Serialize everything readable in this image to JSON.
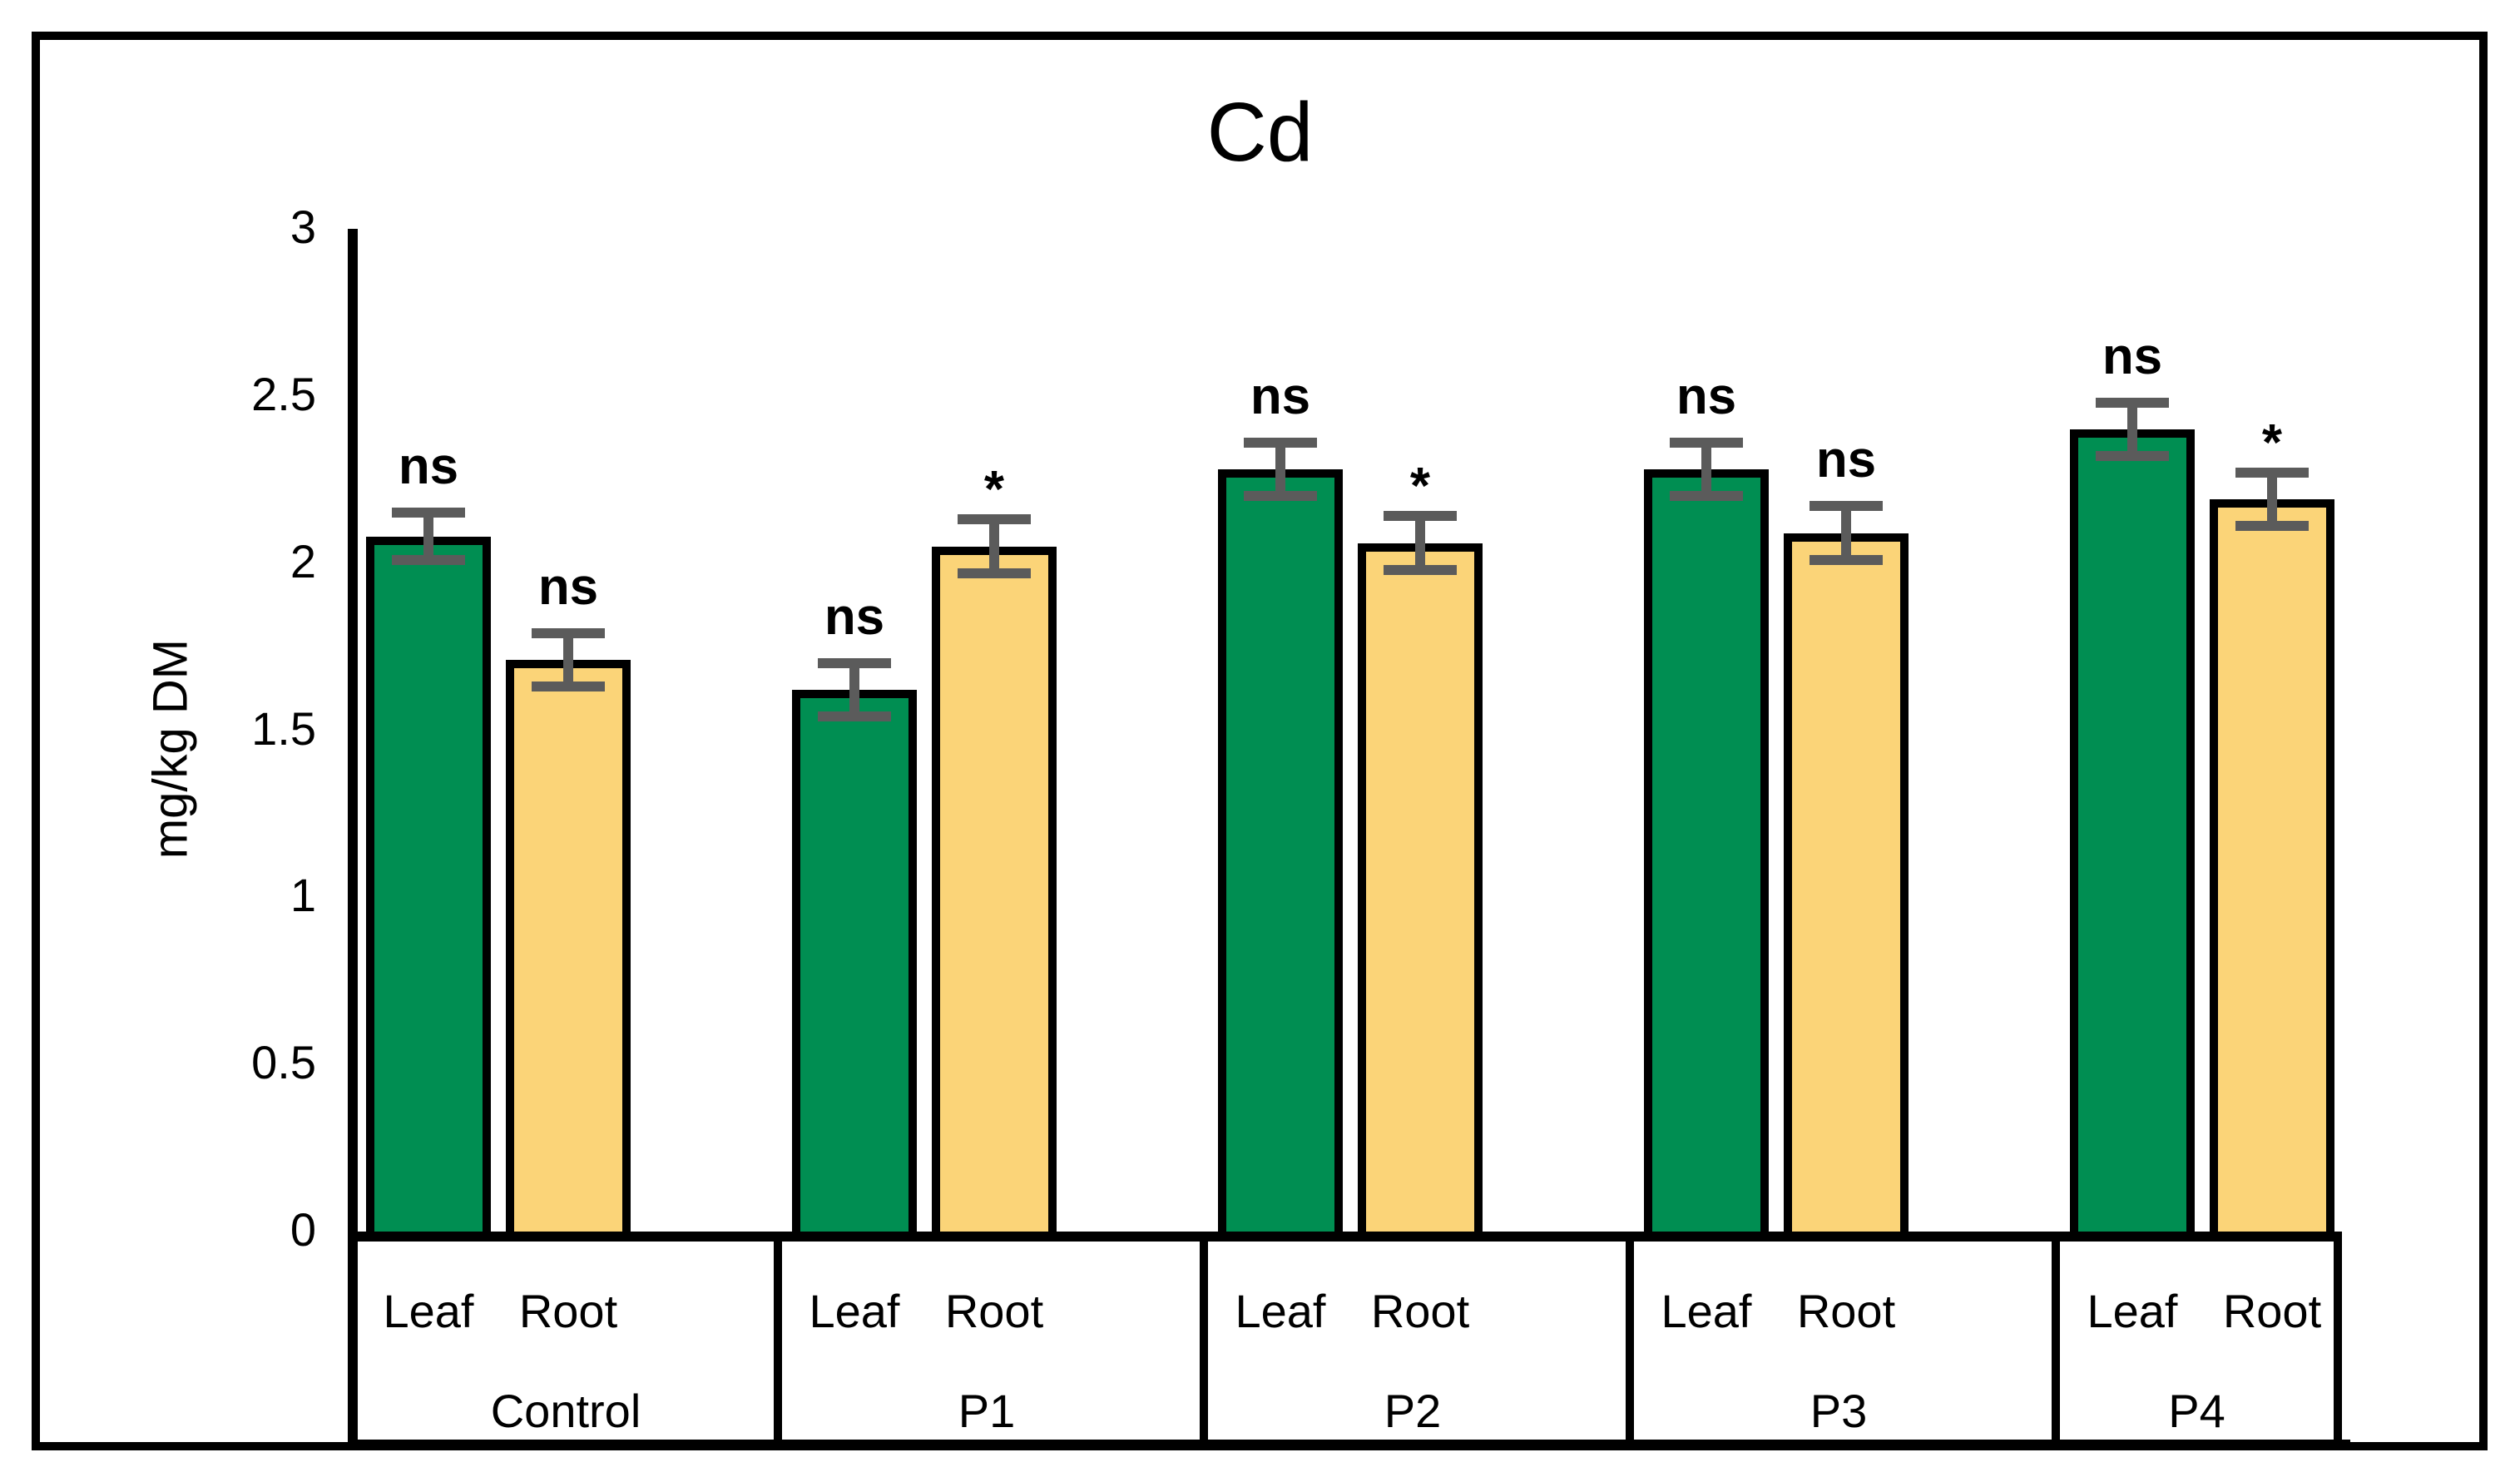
{
  "chart_data": {
    "type": "bar",
    "title": "Cd",
    "ylabel": "mg/kg DM",
    "ylim": [
      0,
      3
    ],
    "yticks": [
      "0",
      "0.5",
      "1",
      "1.5",
      "2",
      "2.5",
      "3"
    ],
    "grid": false,
    "legend_position": "none",
    "categories": [
      "Control",
      "P1",
      "P2",
      "P3",
      "P4"
    ],
    "subcategories": [
      "Leaf",
      "Root"
    ],
    "series": [
      {
        "name": "Leaf",
        "color": "#008E52",
        "values": [
          2.08,
          1.62,
          2.28,
          2.28,
          2.4
        ],
        "errors": [
          0.07,
          0.08,
          0.08,
          0.08,
          0.08
        ],
        "sig": [
          "ns",
          "ns",
          "ns",
          "ns",
          "ns"
        ]
      },
      {
        "name": "Root",
        "color": "#FBD478",
        "values": [
          1.71,
          2.05,
          2.06,
          2.09,
          2.19
        ],
        "errors": [
          0.08,
          0.08,
          0.08,
          0.08,
          0.08
        ],
        "sig": [
          "ns",
          "*",
          "*",
          "ns",
          "*"
        ]
      }
    ],
    "error_bar_color": "#5B5B5B",
    "bar_border_color": "#000000",
    "axis_color": "#000000",
    "frame_color": "#000000",
    "background_color": "#FFFFFF"
  }
}
